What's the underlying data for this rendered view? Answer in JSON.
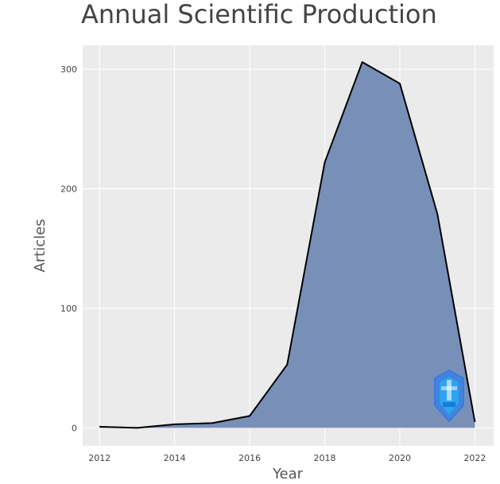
{
  "chart_data": {
    "type": "area",
    "title": "Annual Scientific Production",
    "xlabel": "Year",
    "ylabel": "Articles",
    "x": [
      2012,
      2013,
      2014,
      2015,
      2016,
      2017,
      2018,
      2019,
      2020,
      2021,
      2022
    ],
    "values": [
      1,
      0,
      3,
      4,
      10,
      53,
      222,
      306,
      288,
      179,
      5
    ],
    "xlim": [
      2011.55,
      2022.5
    ],
    "ylim": [
      -15,
      320
    ],
    "xticks": [
      2012,
      2014,
      2016,
      2018,
      2020,
      2022
    ],
    "yticks": [
      0,
      100,
      200,
      300
    ],
    "grid": true,
    "fill_color": "#7890b8",
    "line_color": "#000000",
    "panel_color": "#ebebeb"
  },
  "watermark": {
    "icon": "shield-logo-icon"
  }
}
